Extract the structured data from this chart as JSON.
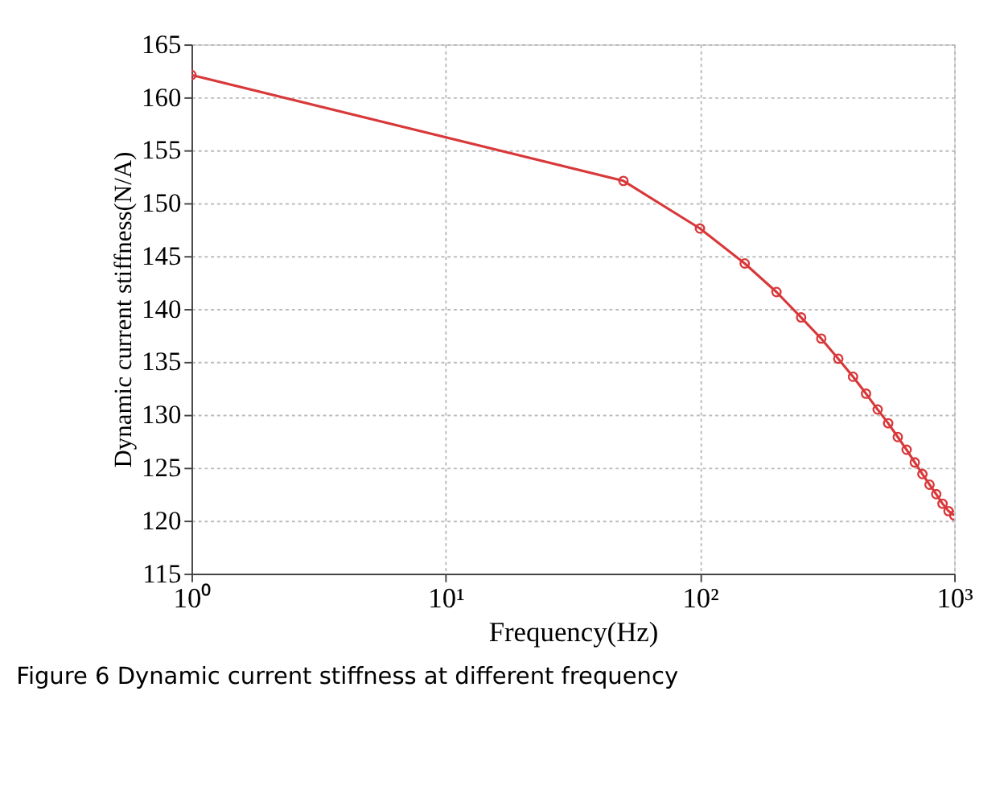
{
  "chart_data": {
    "type": "line",
    "xlabel": "Frequency(Hz)",
    "ylabel": "Dynamic current stiffness(N/A)",
    "annotations": [
      "Figure 6  Dynamic current stiffness at different frequency"
    ],
    "x": [
      1,
      50,
      100,
      150,
      200,
      250,
      300,
      350,
      400,
      450,
      500,
      550,
      600,
      650,
      700,
      750,
      800,
      850,
      900,
      950,
      1000
    ],
    "series": [
      {
        "color": "#d9383a",
        "values": [
          162.1,
          152.1,
          147.6,
          144.3,
          141.6,
          139.2,
          137.2,
          135.3,
          133.6,
          132.0,
          130.5,
          129.2,
          127.9,
          126.7,
          125.5,
          124.4,
          123.4,
          122.5,
          121.6,
          120.9,
          120.5
        ]
      }
    ],
    "log": "x",
    "xlim": [
      1,
      1000
    ],
    "xticks": [
      {
        "value": 1,
        "label": "10⁰"
      },
      {
        "value": 10,
        "label": "10¹"
      },
      {
        "value": 100,
        "label": "10²"
      },
      {
        "value": 1000,
        "label": "10³"
      }
    ],
    "ylim": [
      115,
      165
    ],
    "yticks": [
      115,
      120,
      125,
      130,
      135,
      140,
      145,
      150,
      155,
      160,
      165
    ],
    "grid": true,
    "marker": "circle",
    "line_style": "solid"
  }
}
